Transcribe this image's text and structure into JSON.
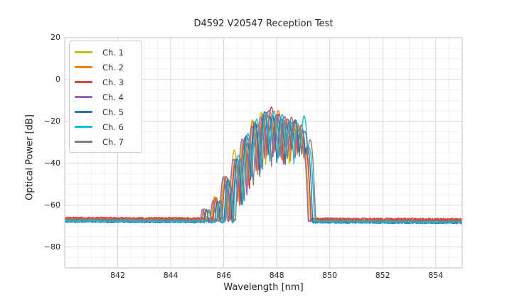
{
  "figure": {
    "title": "D4592 V20547 Reception Test",
    "xlabel": "Wavelength [nm]",
    "ylabel": "Optical Power [dB]"
  },
  "chart_data": {
    "type": "line",
    "title": "D4592 V20547 Reception Test",
    "xlabel": "Wavelength [nm]",
    "ylabel": "Optical Power [dB]",
    "xlim": [
      840.0,
      855.0
    ],
    "ylim": [
      -90,
      20
    ],
    "xticks": {
      "values": [
        842,
        844,
        846,
        848,
        850,
        852,
        854
      ],
      "labels": [
        "842",
        "844",
        "846",
        "848",
        "850",
        "852",
        "854"
      ]
    },
    "yticks": {
      "values": [
        20,
        0,
        -20,
        -40,
        -60,
        -80
      ],
      "labels": [
        "20",
        "0",
        "−20",
        "−40",
        "−60",
        "−80"
      ]
    },
    "minor_grid": {
      "x_step": 0.5,
      "y_step": 5
    },
    "grid_color_major": "#d8d8d8",
    "grid_color_minor": "#ebebeb",
    "spine_color": "#cccccc",
    "legend_position": "upper-left",
    "line_width": 1.4,
    "spectrum_model": {
      "description": "Multimode optical spectrum: noise floor ~-67 dB, lobed band 845.2-849.4 nm peaking ~-16 dB, sharp cliff at ~849.3 nm",
      "lobes": [
        {
          "center": 845.32,
          "peak": -63.5
        },
        {
          "center": 845.72,
          "peak": -56.5
        },
        {
          "center": 846.1,
          "peak": -47.0
        },
        {
          "center": 846.47,
          "peak": -37.5
        },
        {
          "center": 846.82,
          "peak": -27.5
        },
        {
          "center": 847.16,
          "peak": -20.5
        },
        {
          "center": 847.49,
          "peak": -17.2
        },
        {
          "center": 847.81,
          "peak": -15.8
        },
        {
          "center": 848.11,
          "peak": -16.6
        },
        {
          "center": 848.41,
          "peak": -18.6
        },
        {
          "center": 848.68,
          "peak": -20.3
        },
        {
          "center": 848.93,
          "peak": -23.5
        },
        {
          "center": 849.11,
          "peak": -32.0
        }
      ],
      "lobe_half_width_nm": 0.165,
      "notch_depth_db": 25,
      "noise_amplitude_db": 0.42,
      "floor_slope_db_per_nm": -0.04,
      "sample_step_nm": 0.01
    },
    "series": [
      {
        "name": "Ch. 1",
        "color": "#bcbd22",
        "offset_nm": -0.07,
        "floor_db": -67.3,
        "seed": 101,
        "boosts": {
          "3": 2
        }
      },
      {
        "name": "Ch. 2",
        "color": "#ff7f0e",
        "offset_nm": -0.035,
        "floor_db": -67.0,
        "seed": 202,
        "boosts": {}
      },
      {
        "name": "Ch. 3",
        "color": "#d6463f",
        "offset_nm": 0.0,
        "floor_db": -66.4,
        "seed": 303,
        "boosts": {
          "7": 1
        }
      },
      {
        "name": "Ch. 4",
        "color": "#9467bd",
        "offset_nm": -0.11,
        "floor_db": -67.5,
        "seed": 404,
        "boosts": {}
      },
      {
        "name": "Ch. 5",
        "color": "#1f77b4",
        "offset_nm": 0.045,
        "floor_db": -68.2,
        "seed": 505,
        "boosts": {}
      },
      {
        "name": "Ch. 6",
        "color": "#17becf",
        "offset_nm": 0.1,
        "floor_db": -67.8,
        "seed": 606,
        "boosts": {
          "11": 5
        }
      },
      {
        "name": "Ch. 7",
        "color": "#7f7f7f",
        "offset_nm": 0.135,
        "floor_db": -67.2,
        "seed": 707,
        "boosts": {
          "12": 3
        }
      }
    ]
  }
}
